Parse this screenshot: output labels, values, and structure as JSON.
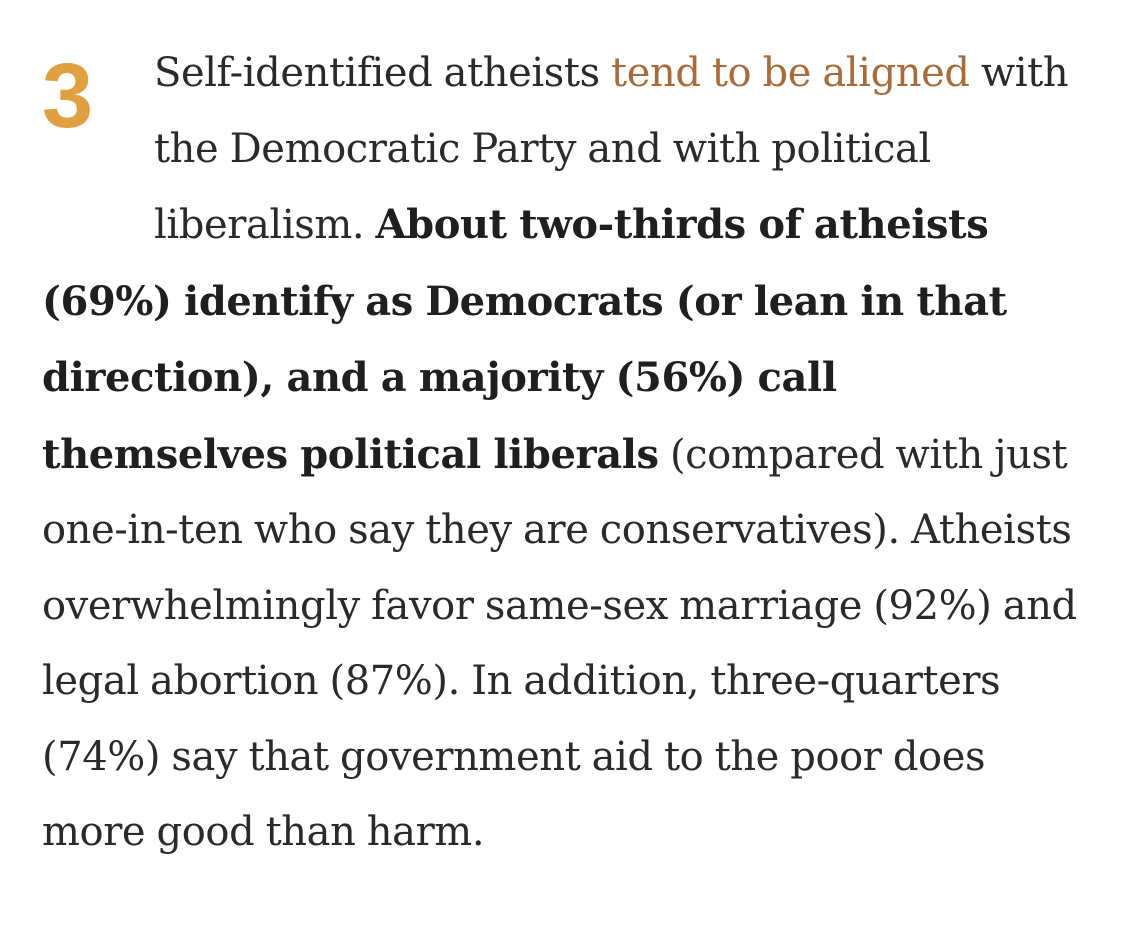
{
  "item": {
    "number": "3",
    "text_intro": "Self-identified atheists ",
    "link_text": "tend to be aligned",
    "text_after_link": " with the Democratic Party and with political liberalism. ",
    "bold_text": "About two-thirds of atheists (69%) identify as Democrats (or lean in that direction), and a majority (56%) call themselves political liberals",
    "text_rest": " (compared with just one-in-ten who say they are conservatives). Atheists overwhelmingly favor same-sex marriage (92%) and legal abortion (87%). In addition, three-quarters (74%) say that government aid to the poor does more good than harm."
  },
  "colors": {
    "number_accent": "#e0a042",
    "link": "#a86b3c",
    "body_text": "#2a2a2a"
  }
}
